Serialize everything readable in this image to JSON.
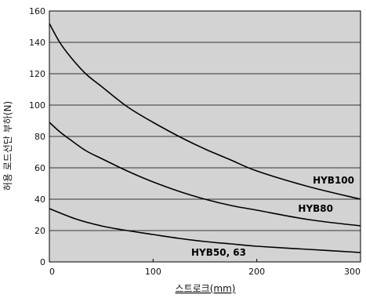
{
  "chart_data": {
    "type": "line",
    "title": "",
    "xlabel": "스트로크(mm)",
    "ylabel": "허용 로드선단 부하(N)",
    "xlim": [
      0,
      300
    ],
    "ylim": [
      0,
      160
    ],
    "x_ticks": [
      0,
      100,
      200,
      300
    ],
    "y_ticks": [
      0,
      20,
      40,
      60,
      80,
      100,
      120,
      140,
      160
    ],
    "grid": "horizontal",
    "plot_background": "#d3d3d3",
    "line_color": "#000000",
    "series": [
      {
        "name": "HYB100",
        "x": [
          0,
          10,
          20,
          35,
          50,
          75,
          100,
          125,
          150,
          175,
          200,
          250,
          300
        ],
        "y": [
          152,
          140,
          131,
          120,
          112,
          99,
          89,
          80,
          72,
          65,
          58,
          48,
          40
        ]
      },
      {
        "name": "HYB80",
        "x": [
          0,
          10,
          20,
          35,
          50,
          75,
          100,
          125,
          150,
          175,
          200,
          250,
          300
        ],
        "y": [
          89,
          83,
          78,
          71,
          66,
          58,
          51,
          45,
          40,
          36,
          33,
          27,
          23
        ]
      },
      {
        "name": "HYB50, 63",
        "x": [
          0,
          25,
          50,
          75,
          100,
          125,
          150,
          175,
          200,
          250,
          300
        ],
        "y": [
          34,
          27.5,
          23,
          20,
          17.5,
          15,
          13,
          11.5,
          10,
          8,
          6
        ]
      }
    ]
  }
}
